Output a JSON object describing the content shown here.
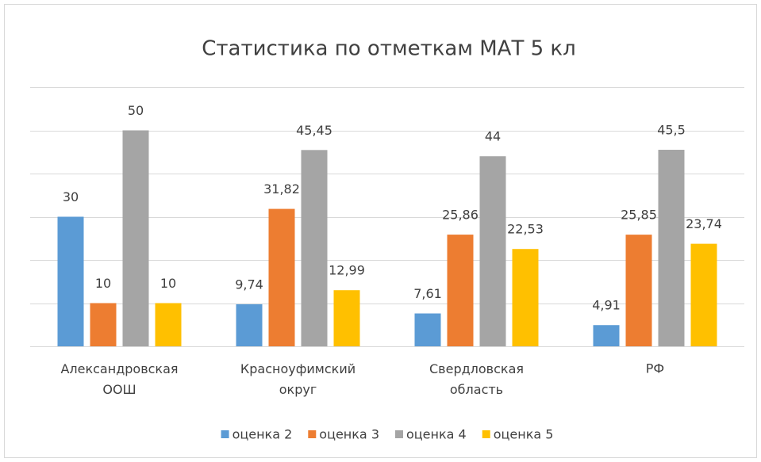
{
  "chart_data": {
    "type": "bar",
    "title": "Статистика по отметкам МАТ 5 кл",
    "categories": [
      "Александровская ООШ",
      "Красноуфимский округ",
      "Свердловская область",
      "РФ"
    ],
    "series": [
      {
        "name": "оценка 2",
        "color": "#5b9bd5",
        "values": [
          30,
          9.74,
          7.61,
          4.91
        ],
        "value_labels": [
          "30",
          "9,74",
          "7,61",
          "4,91"
        ]
      },
      {
        "name": "оценка 3",
        "color": "#ed7d31",
        "values": [
          10,
          31.82,
          25.86,
          25.85
        ],
        "value_labels": [
          "10",
          "31,82",
          "25,86",
          "25,85"
        ]
      },
      {
        "name": "оценка 4",
        "color": "#a5a5a5",
        "values": [
          50,
          45.45,
          44,
          45.5
        ],
        "value_labels": [
          "50",
          "45,45",
          "44",
          "45,5"
        ]
      },
      {
        "name": "оценка 5",
        "color": "#ffc000",
        "values": [
          10,
          12.99,
          22.53,
          23.74
        ],
        "value_labels": [
          "10",
          "12,99",
          "22,53",
          "23,74"
        ]
      }
    ],
    "ylim": [
      0,
      60
    ],
    "yticks": [
      0,
      10,
      20,
      30,
      40,
      50,
      60
    ],
    "grid": true,
    "legend": "bottom"
  }
}
